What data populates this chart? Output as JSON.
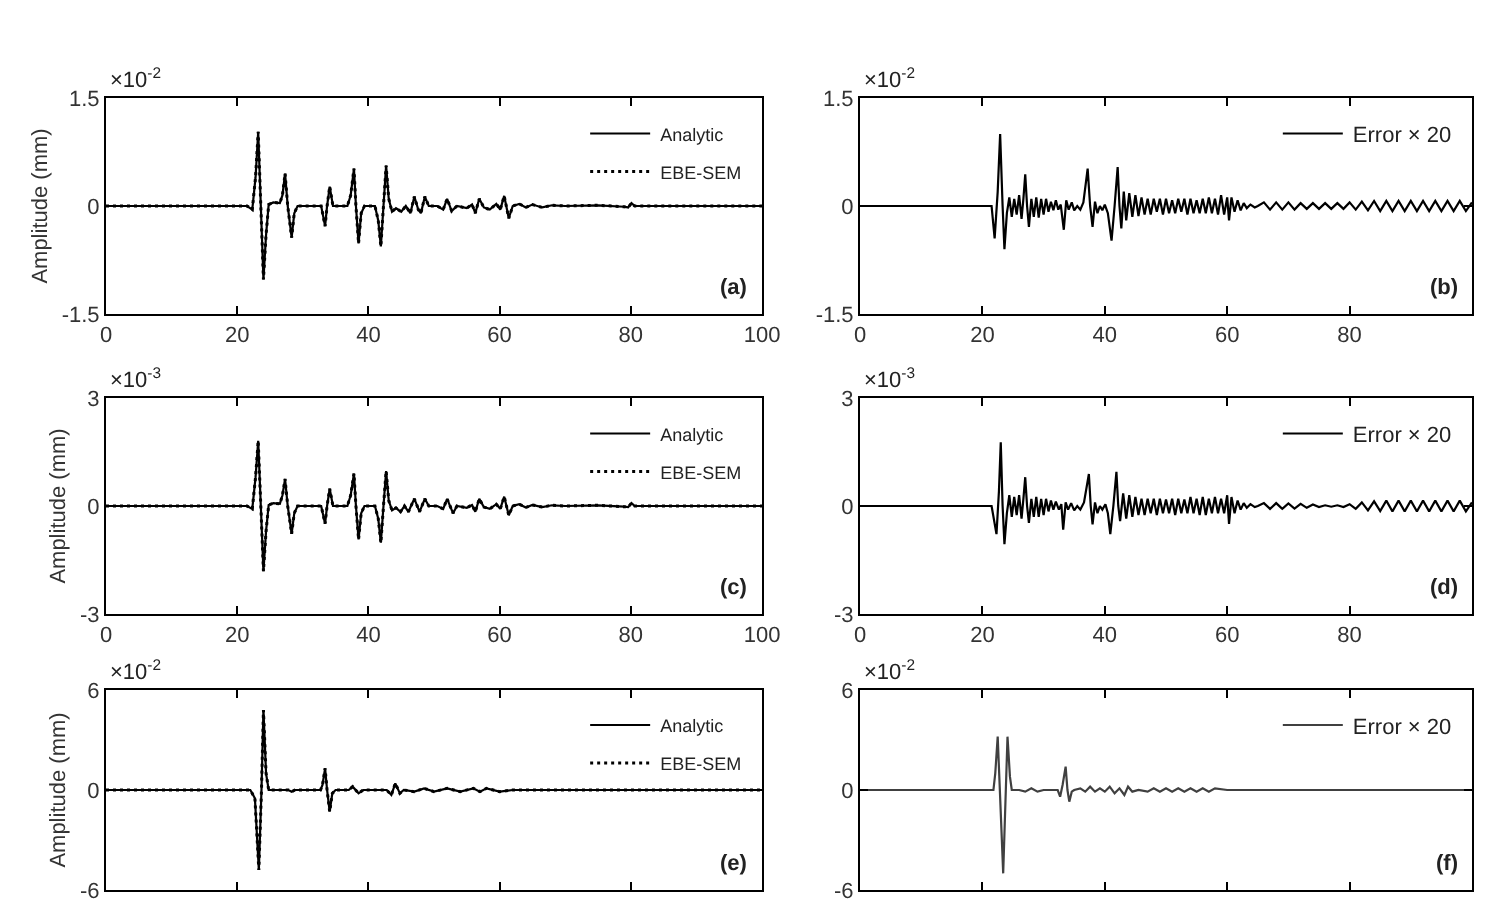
{
  "chart_data": [
    {
      "type": "line",
      "ylabel": "Amplitude (mm)",
      "annotations": [
        "×10$^{-2}$",
        "(a)"
      ],
      "x": [
        0,
        21.5,
        22.3,
        22.8,
        23.2,
        23.6,
        24.0,
        24.4,
        24.8,
        25.5,
        26.5,
        26.9,
        27.3,
        27.7,
        28.3,
        28.7,
        29.2,
        32.8,
        33.4,
        33.7,
        34.1,
        34.6,
        36.8,
        37.3,
        37.8,
        38.1,
        38.5,
        38.9,
        39.4,
        41.0,
        41.5,
        41.9,
        42.3,
        42.7,
        43.1,
        43.6,
        44.2,
        45.0,
        45.7,
        46.4,
        47.0,
        47.6,
        48.0,
        48.6,
        49.2,
        50.5,
        51.4,
        52.0,
        52.7,
        53.5,
        55.0,
        55.8,
        56.3,
        56.9,
        57.6,
        58.5,
        59.5,
        60.1,
        60.7,
        61.4,
        62.0,
        63.0,
        64.0,
        65.0,
        66.5,
        68.0,
        70.0,
        75.0,
        79.0,
        79.6,
        80.1,
        80.6,
        90.0,
        100
      ],
      "series": [
        {
          "name": "Analytic",
          "color": "#000000",
          "line_style": "solid",
          "values": [
            0,
            0,
            -0.05,
            0.4,
            1.03,
            0,
            -1.02,
            -0.4,
            0.02,
            0.05,
            0.04,
            0.15,
            0.45,
            0,
            -0.44,
            -0.1,
            0,
            0,
            -0.28,
            0,
            0.27,
            0,
            0,
            0.15,
            0.52,
            0,
            -0.52,
            -0.1,
            0,
            0,
            -0.2,
            -0.56,
            0,
            0.56,
            0.1,
            -0.08,
            -0.03,
            -0.08,
            0,
            -0.1,
            0.13,
            -0.05,
            -0.1,
            0.13,
            0,
            0,
            -0.05,
            0.1,
            -0.07,
            0,
            -0.03,
            0.02,
            -0.1,
            0.1,
            -0.02,
            -0.05,
            0.03,
            -0.05,
            0.14,
            -0.17,
            0,
            0.03,
            -0.02,
            0.02,
            -0.02,
            0.01,
            0,
            0.01,
            -0.01,
            -0.02,
            0.04,
            0,
            0,
            0
          ]
        },
        {
          "name": "EBE-SEM",
          "color": "#000000",
          "line_style": "dotted",
          "values": [
            0,
            0,
            -0.05,
            0.4,
            1.03,
            0,
            -1.02,
            -0.4,
            0.02,
            0.05,
            0.04,
            0.15,
            0.45,
            0,
            -0.44,
            -0.1,
            0,
            0,
            -0.28,
            0,
            0.27,
            0,
            0,
            0.15,
            0.52,
            0,
            -0.52,
            -0.1,
            0,
            0,
            -0.2,
            -0.56,
            0,
            0.56,
            0.1,
            -0.08,
            -0.03,
            -0.08,
            0,
            -0.1,
            0.13,
            -0.05,
            -0.1,
            0.13,
            0,
            0,
            -0.05,
            0.1,
            -0.07,
            0,
            -0.03,
            0.02,
            -0.1,
            0.1,
            -0.02,
            -0.05,
            0.03,
            -0.05,
            0.14,
            -0.17,
            0,
            0.03,
            -0.02,
            0.02,
            -0.02,
            0.01,
            0,
            0.01,
            -0.01,
            -0.02,
            0.04,
            0,
            0,
            0
          ]
        }
      ],
      "xlim": [
        0,
        100
      ],
      "xticks": [
        0,
        20,
        40,
        60,
        80,
        100
      ],
      "ylim": [
        -1.5,
        1.5
      ],
      "yticks": [
        -1.5,
        0,
        1.5
      ],
      "grid": false,
      "legend": "top right"
    },
    {
      "type": "line",
      "annotations": [
        "×10$^{-2}$",
        "(b)"
      ],
      "x": [
        0,
        21.5,
        22.0,
        22.5,
        22.9,
        23.3,
        23.6,
        24.0,
        24.4,
        24.8,
        25.2,
        25.6,
        26.0,
        26.4,
        26.7,
        27.0,
        27.3,
        27.6,
        28.0,
        28.4,
        28.8,
        29.2,
        29.6,
        30.0,
        30.4,
        30.8,
        31.2,
        31.6,
        32.0,
        32.4,
        32.8,
        33.3,
        33.7,
        34.1,
        34.6,
        35.0,
        35.5,
        36.0,
        36.5,
        37.2,
        37.6,
        38.0,
        38.4,
        38.8,
        39.2,
        39.6,
        40.0,
        40.5,
        41.1,
        41.6,
        42.1,
        42.4,
        42.7,
        43.1,
        43.5,
        44.0,
        44.5,
        45.0,
        45.5,
        46.0,
        46.5,
        47.0,
        47.5,
        48.0,
        48.5,
        49.0,
        49.5,
        50.0,
        50.5,
        51.0,
        51.5,
        52.0,
        52.5,
        53.0,
        53.5,
        54.0,
        54.5,
        55.0,
        55.5,
        56.0,
        56.5,
        57.0,
        57.5,
        58.0,
        58.5,
        59.0,
        59.5,
        60.0,
        60.3,
        60.7,
        61.2,
        61.7,
        62.2,
        62.7,
        63.2,
        63.8,
        64.5,
        65.0,
        66,
        67,
        68,
        69,
        70,
        71,
        72,
        73,
        74,
        75,
        76,
        77,
        78,
        79,
        80,
        81,
        82,
        83,
        84,
        85,
        86,
        87,
        88,
        89,
        90,
        91,
        92,
        93,
        94,
        95,
        96,
        97,
        98,
        99,
        100
      ],
      "series": [
        {
          "name": "Error × 20",
          "color": "#000000",
          "line_style": "solid",
          "values": [
            0,
            0,
            -0.45,
            0.2,
            1.0,
            0,
            -0.6,
            -0.1,
            0.12,
            -0.15,
            0.1,
            -0.12,
            0.15,
            -0.18,
            0.1,
            0.44,
            0,
            -0.29,
            0.1,
            -0.15,
            0.12,
            -0.16,
            0.1,
            -0.12,
            0.1,
            -0.08,
            0.06,
            -0.06,
            0.08,
            -0.05,
            0.02,
            -0.33,
            0.08,
            -0.05,
            0.05,
            -0.06,
            0,
            -0.05,
            0.05,
            0.52,
            0,
            -0.29,
            0.06,
            -0.1,
            0,
            -0.06,
            0.02,
            -0.1,
            -0.48,
            0,
            0.54,
            0,
            -0.31,
            0.2,
            -0.2,
            0.18,
            -0.15,
            0.15,
            -0.14,
            0.12,
            -0.12,
            0.1,
            -0.12,
            0.1,
            -0.08,
            0.1,
            -0.12,
            0.1,
            -0.1,
            0.08,
            -0.1,
            0.1,
            -0.08,
            0.1,
            -0.12,
            0.1,
            -0.1,
            0.08,
            -0.1,
            0.1,
            -0.1,
            0.12,
            -0.1,
            0.1,
            -0.12,
            0.15,
            -0.12,
            0.12,
            -0.2,
            0.12,
            -0.08,
            0.08,
            -0.06,
            0.04,
            -0.03,
            0.02,
            -0.02,
            0,
            0.05,
            -0.05,
            0.05,
            -0.05,
            0.05,
            -0.05,
            0.04,
            -0.04,
            0.04,
            -0.04,
            0.04,
            -0.04,
            0.04,
            -0.04,
            0.05,
            -0.05,
            0.06,
            -0.06,
            0.07,
            -0.07,
            0.07,
            -0.07,
            0.07,
            -0.07,
            0.07,
            -0.07,
            0.07,
            -0.07,
            0.07,
            -0.07,
            0.07,
            -0.07,
            0.07,
            -0.07,
            0.05
          ]
        }
      ],
      "xlim": [
        0,
        100
      ],
      "xticks": [
        0,
        20,
        40,
        60,
        80
      ],
      "ylim": [
        -1.5,
        1.5
      ],
      "yticks": [
        -1.5,
        0,
        1.5
      ],
      "grid": false,
      "legend": "top right"
    },
    {
      "type": "line",
      "ylabel": "Amplitude (mm)",
      "annotations": [
        "×10$^{-3}$",
        "(c)"
      ],
      "x": [
        0,
        21.5,
        22.3,
        22.8,
        23.2,
        23.6,
        24.0,
        24.4,
        24.8,
        25.5,
        26.5,
        26.9,
        27.3,
        27.7,
        28.3,
        28.7,
        29.2,
        32.8,
        33.4,
        33.7,
        34.1,
        34.6,
        36.8,
        37.3,
        37.8,
        38.1,
        38.5,
        38.9,
        39.4,
        41.0,
        41.5,
        41.9,
        42.3,
        42.7,
        43.1,
        43.6,
        44.2,
        44.9,
        45.5,
        46.1,
        47.0,
        47.8,
        48.6,
        49.2,
        50.5,
        51.4,
        52.0,
        52.9,
        53.5,
        55.0,
        55.8,
        56.3,
        56.9,
        57.6,
        58.5,
        59.5,
        60.1,
        60.7,
        61.4,
        62.0,
        63.0,
        64.0,
        65.0,
        66.5,
        68.0,
        70.0,
        75.0,
        79.0,
        79.6,
        80.1,
        80.6,
        90.0,
        100
      ],
      "series": [
        {
          "name": "Analytic",
          "color": "#000000",
          "line_style": "solid",
          "values": [
            0,
            0,
            -0.08,
            0.8,
            1.81,
            0,
            -1.81,
            -0.7,
            0.03,
            0.08,
            0.06,
            0.3,
            0.75,
            0,
            -0.77,
            -0.2,
            0,
            0,
            -0.49,
            0,
            0.48,
            0,
            0,
            0.3,
            0.9,
            0,
            -0.93,
            -0.2,
            0,
            0,
            -0.35,
            -1.02,
            0,
            0.97,
            0.15,
            -0.12,
            -0.05,
            -0.16,
            0,
            -0.16,
            0.2,
            -0.16,
            0.2,
            0,
            0,
            -0.08,
            0.2,
            -0.2,
            0,
            -0.05,
            0.03,
            -0.16,
            0.2,
            -0.03,
            -0.08,
            0.05,
            -0.08,
            0.26,
            -0.26,
            0,
            0.05,
            -0.04,
            0.03,
            -0.03,
            0.02,
            0,
            0.02,
            -0.02,
            -0.03,
            0.08,
            0,
            0,
            0
          ]
        },
        {
          "name": "EBE-SEM",
          "color": "#000000",
          "line_style": "dotted",
          "values": [
            0,
            0,
            -0.08,
            0.8,
            1.81,
            0,
            -1.81,
            -0.7,
            0.03,
            0.08,
            0.06,
            0.3,
            0.75,
            0,
            -0.77,
            -0.2,
            0,
            0,
            -0.49,
            0,
            0.48,
            0,
            0,
            0.3,
            0.9,
            0,
            -0.93,
            -0.2,
            0,
            0,
            -0.35,
            -1.02,
            0,
            0.97,
            0.15,
            -0.12,
            -0.05,
            -0.16,
            0,
            -0.16,
            0.2,
            -0.16,
            0.2,
            0,
            0,
            -0.08,
            0.2,
            -0.2,
            0,
            -0.05,
            0.03,
            -0.16,
            0.2,
            -0.03,
            -0.08,
            0.05,
            -0.08,
            0.26,
            -0.26,
            0,
            0.05,
            -0.04,
            0.03,
            -0.03,
            0.02,
            0,
            0.02,
            -0.02,
            -0.03,
            0.08,
            0,
            0,
            0
          ]
        }
      ],
      "xlim": [
        0,
        100
      ],
      "xticks": [
        0,
        20,
        40,
        60,
        80,
        100
      ],
      "ylim": [
        -3,
        3
      ],
      "yticks": [
        -3,
        0,
        3
      ],
      "grid": false,
      "legend": "top right"
    },
    {
      "type": "line",
      "annotations": [
        "×10$^{-3}$",
        "(d)"
      ],
      "x": [
        0,
        21.5,
        22.3,
        22.7,
        23.0,
        23.3,
        23.6,
        24.0,
        24.4,
        24.8,
        25.2,
        25.6,
        26.0,
        26.4,
        26.7,
        27.0,
        27.3,
        27.6,
        28.0,
        28.4,
        28.8,
        29.2,
        29.6,
        30.0,
        30.4,
        30.8,
        31.2,
        31.6,
        32.0,
        32.5,
        32.9,
        33.2,
        33.6,
        34.0,
        34.5,
        35.0,
        35.5,
        36.0,
        36.6,
        37.4,
        37.7,
        38.0,
        38.4,
        38.8,
        39.2,
        39.6,
        40.1,
        40.5,
        40.9,
        41.4,
        41.9,
        42.2,
        42.5,
        43.0,
        43.5,
        44.0,
        44.5,
        45.0,
        45.5,
        46.0,
        46.5,
        47.0,
        47.5,
        48.0,
        48.5,
        49.0,
        49.5,
        50.0,
        50.5,
        51.0,
        51.5,
        52.0,
        52.5,
        53.0,
        53.5,
        54.0,
        54.5,
        55.0,
        55.5,
        56.0,
        56.5,
        57.0,
        57.5,
        58.0,
        58.5,
        59.0,
        59.5,
        60.0,
        60.3,
        60.7,
        61.2,
        61.7,
        62.2,
        62.7,
        63.2,
        63.8,
        64.5,
        65.0,
        66,
        67,
        68,
        69,
        70,
        71,
        72,
        73,
        74,
        75,
        76,
        77,
        78,
        79,
        80,
        81,
        82,
        83,
        84,
        85,
        86,
        87,
        88,
        89,
        90,
        91,
        92,
        93,
        94,
        95,
        96,
        97,
        98,
        99,
        100
      ],
      "series": [
        {
          "name": "Error × 20",
          "color": "#000000",
          "line_style": "solid",
          "values": [
            0,
            0,
            -0.78,
            0.4,
            1.77,
            0,
            -1.06,
            -0.2,
            0.3,
            -0.3,
            0.25,
            -0.25,
            0.3,
            -0.35,
            0.2,
            0.8,
            0,
            -0.47,
            0.2,
            -0.3,
            0.25,
            -0.3,
            0.2,
            -0.25,
            0.2,
            -0.15,
            0.15,
            -0.1,
            0.12,
            -0.1,
            0.05,
            -0.66,
            0.1,
            -0.1,
            0.08,
            -0.12,
            0,
            -0.1,
            0.1,
            0.89,
            0,
            -0.51,
            0.1,
            -0.2,
            0,
            -0.1,
            0.05,
            -0.2,
            -0.78,
            0,
            0.95,
            0,
            -0.42,
            0.35,
            -0.35,
            0.3,
            -0.3,
            0.25,
            -0.25,
            0.2,
            -0.25,
            0.2,
            -0.2,
            0.2,
            -0.25,
            0.2,
            -0.2,
            0.18,
            -0.2,
            0.2,
            -0.25,
            0.2,
            -0.2,
            0.18,
            -0.2,
            0.25,
            -0.2,
            0.2,
            -0.25,
            0.25,
            -0.25,
            0.2,
            -0.2,
            0.25,
            -0.2,
            0.2,
            -0.2,
            0.3,
            -0.5,
            0.25,
            -0.2,
            0.15,
            -0.1,
            0.08,
            -0.05,
            0.05,
            -0.03,
            0,
            0.08,
            -0.08,
            0.08,
            -0.08,
            0.07,
            -0.07,
            0.06,
            -0.05,
            0.04,
            -0.03,
            0.02,
            -0.02,
            0.02,
            -0.03,
            0.05,
            -0.08,
            0.1,
            -0.12,
            0.13,
            -0.14,
            0.15,
            -0.15,
            0.15,
            -0.15,
            0.15,
            -0.15,
            0.15,
            -0.15,
            0.15,
            -0.15,
            0.15,
            -0.15,
            0.15,
            -0.15,
            0.1
          ]
        }
      ],
      "xlim": [
        0,
        100
      ],
      "xticks": [
        0,
        20,
        40,
        60,
        80
      ],
      "ylim": [
        -3,
        3
      ],
      "yticks": [
        -3,
        0,
        3
      ],
      "grid": false,
      "legend": "top right"
    },
    {
      "type": "line",
      "ylabel": "Amplitude (mm)",
      "annotations": [
        "×10$^{-2}$",
        "(e)"
      ],
      "x": [
        0,
        22.0,
        22.7,
        23.3,
        23.7,
        24.0,
        24.4,
        24.8,
        27.8,
        28.3,
        28.8,
        32.7,
        33.0,
        33.4,
        33.7,
        34.1,
        34.5,
        35.0,
        37.0,
        37.6,
        38.5,
        39.2,
        42.8,
        43.5,
        44.1,
        44.8,
        45.4,
        47.0,
        48.5,
        50.0,
        52.0,
        54.0,
        56.0,
        57.0,
        58.0,
        60.0,
        62.0,
        65.0,
        70.0,
        80.0,
        100
      ],
      "series": [
        {
          "name": "Analytic",
          "color": "#000000",
          "line_style": "solid",
          "values": [
            0,
            0,
            -0.5,
            -4.8,
            0,
            4.8,
            1.0,
            0,
            0,
            -0.1,
            0,
            0,
            0.3,
            1.3,
            0,
            -1.3,
            -0.2,
            0,
            0,
            0.2,
            -0.2,
            0,
            0,
            -0.3,
            0.4,
            -0.2,
            0,
            -0.1,
            0.1,
            -0.1,
            0.1,
            -0.1,
            0.1,
            -0.1,
            0.1,
            -0.1,
            0,
            0,
            0,
            0,
            0
          ]
        },
        {
          "name": "EBE-SEM",
          "color": "#000000",
          "line_style": "dotted",
          "values": [
            0,
            0,
            -0.5,
            -4.8,
            0,
            4.8,
            1.0,
            0,
            0,
            -0.1,
            0,
            0,
            0.3,
            1.3,
            0,
            -1.3,
            -0.2,
            0,
            0,
            0.2,
            -0.2,
            0,
            0,
            -0.3,
            0.4,
            -0.2,
            0,
            -0.1,
            0.1,
            -0.1,
            0.1,
            -0.1,
            0.1,
            -0.1,
            0.1,
            -0.1,
            0,
            0,
            0,
            0,
            0
          ]
        }
      ],
      "xlim": [
        0,
        100
      ],
      "xticks": [
        0,
        20,
        40,
        60,
        80,
        100
      ],
      "ylim": [
        -6,
        6
      ],
      "yticks": [
        -6,
        0,
        6
      ],
      "grid": false,
      "legend": "top right",
      "tick_labels": "y"
    },
    {
      "type": "line",
      "annotations": [
        "×10$^{-2}$",
        "(f)"
      ],
      "x": [
        0,
        21.8,
        22.1,
        22.5,
        23.4,
        24.1,
        24.5,
        24.8,
        26.0,
        27.0,
        28.0,
        29.0,
        30.0,
        31.5,
        32.3,
        32.7,
        33.1,
        33.6,
        33.9,
        34.2,
        34.6,
        35.0,
        36.0,
        36.8,
        37.6,
        38.4,
        39.2,
        40.0,
        40.8,
        41.6,
        42.4,
        43.2,
        43.8,
        44.5,
        45.5,
        47.0,
        48.0,
        49.0,
        50.0,
        51.0,
        52.0,
        53.0,
        54.0,
        55.0,
        56.0,
        57.0,
        58.0,
        60.0,
        100
      ],
      "series": [
        {
          "name": "Error × 20",
          "color": "#404040",
          "line_style": "solid",
          "values": [
            0,
            0,
            1.0,
            3.2,
            -5.0,
            3.2,
            0.8,
            0,
            0,
            -0.1,
            0.1,
            -0.1,
            0,
            0,
            0,
            -0.4,
            0.3,
            1.4,
            0,
            -0.7,
            -0.1,
            0,
            0.1,
            -0.1,
            0.2,
            -0.1,
            0.1,
            -0.1,
            0.2,
            -0.2,
            0.1,
            -0.3,
            0.2,
            -0.1,
            0,
            -0.1,
            0.1,
            -0.1,
            0.1,
            -0.1,
            0.1,
            -0.1,
            0.1,
            -0.1,
            0.1,
            -0.1,
            0.1,
            0,
            0
          ]
        }
      ],
      "xlim": [
        0,
        100
      ],
      "xticks": [
        0,
        20,
        40,
        60,
        80,
        100
      ],
      "ylim": [
        -6,
        6
      ],
      "yticks": [
        -6,
        0,
        6
      ],
      "grid": false,
      "legend": "top right",
      "tick_labels": "y"
    }
  ]
}
